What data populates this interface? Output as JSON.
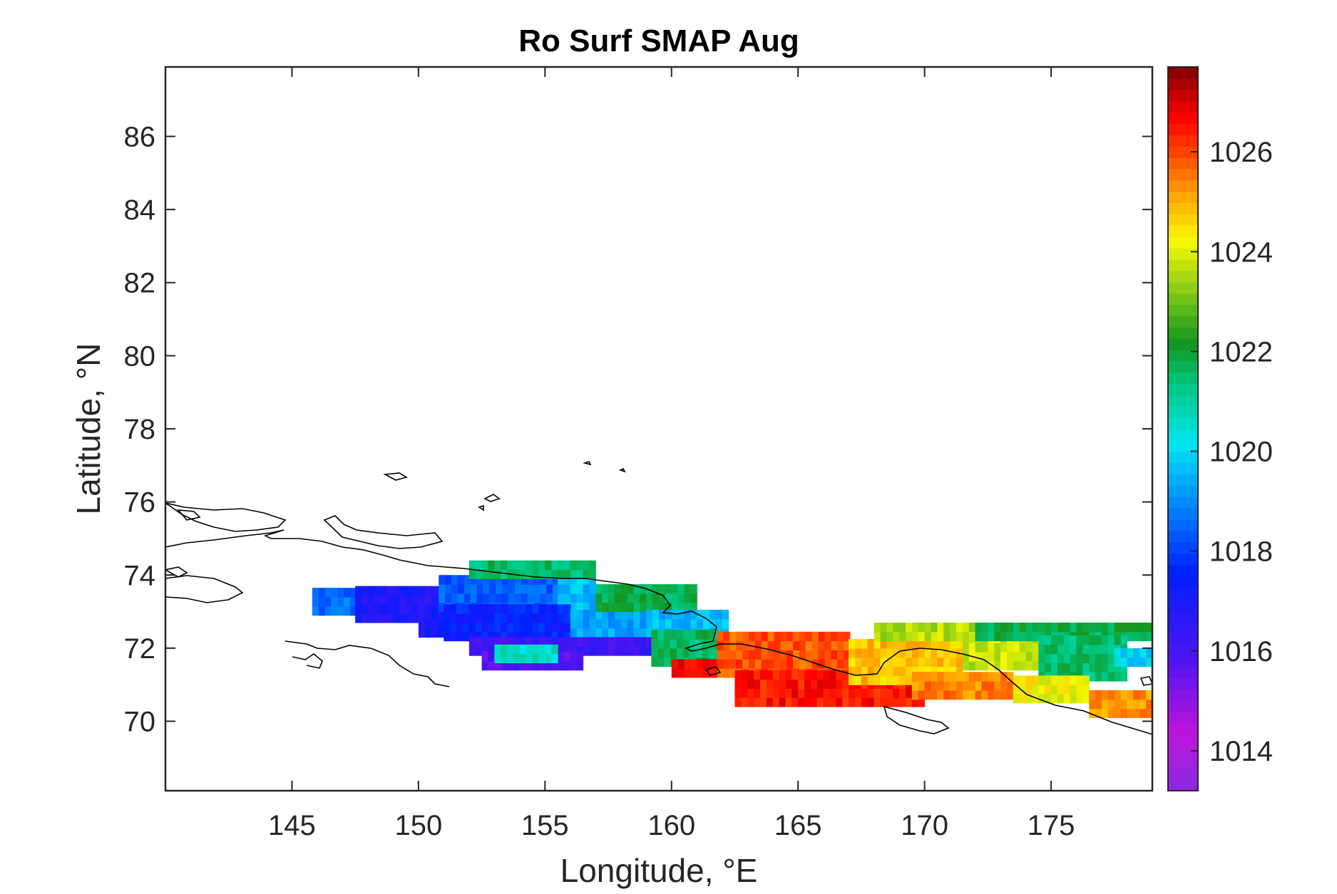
{
  "figure": {
    "title": "Ro Surf SMAP Aug"
  },
  "chart_data": {
    "type": "heatmap",
    "title": "Ro Surf SMAP Aug",
    "xlabel": "Longitude, °E",
    "ylabel": "Latitude, °N",
    "xlim": [
      140,
      179
    ],
    "ylim": [
      68.1,
      87.9
    ],
    "x_ticks": [
      145,
      150,
      155,
      160,
      165,
      170,
      175
    ],
    "y_ticks": [
      70,
      72,
      74,
      76,
      78,
      80,
      82,
      84,
      86
    ],
    "x_tick_labels": [
      "145",
      "150",
      "155",
      "160",
      "165",
      "170",
      "175"
    ],
    "y_tick_labels": [
      "70",
      "72",
      "74",
      "76",
      "78",
      "80",
      "82",
      "84",
      "86"
    ],
    "grid": false,
    "colorbar": {
      "position": "right",
      "colormap": "jet-like (purple-blue-cyan-green-yellow-red-darkred)",
      "clim": [
        1013.2,
        1027.7
      ],
      "ticks": [
        1014,
        1016,
        1018,
        1020,
        1022,
        1024,
        1026
      ],
      "tick_labels": [
        "1014",
        "1016",
        "1018",
        "1020",
        "1022",
        "1024",
        "1026"
      ]
    },
    "grid_cell_deg": {
      "lon": 0.25,
      "lat": 0.25
    },
    "regions": [
      {
        "name": "",
        "lon": [
          145.8,
          147.5
        ],
        "lat": [
          72.9,
          73.5
        ],
        "value": 1018.6
      },
      {
        "name": "",
        "lon": [
          147.5,
          151.0
        ],
        "lat": [
          72.7,
          73.5
        ],
        "value": 1016.8
      },
      {
        "name": "",
        "lon": [
          150.0,
          152.5
        ],
        "lat": [
          72.3,
          73.0
        ],
        "value": 1017.0
      },
      {
        "name": "",
        "lon": [
          150.8,
          155.5
        ],
        "lat": [
          73.0,
          73.9
        ],
        "value": 1018.4
      },
      {
        "name": "",
        "lon": [
          155.5,
          157.0
        ],
        "lat": [
          73.0,
          73.9
        ],
        "value": 1019.6
      },
      {
        "name": "",
        "lon": [
          151.0,
          156.0
        ],
        "lat": [
          72.2,
          73.0
        ],
        "value": 1017.5
      },
      {
        "name": "",
        "lon": [
          156.0,
          159.0
        ],
        "lat": [
          72.3,
          73.0
        ],
        "value": 1019.3
      },
      {
        "name": "",
        "lon": [
          157.0,
          160.8
        ],
        "lat": [
          73.0,
          73.7
        ],
        "value": 1021.8
      },
      {
        "name": "",
        "lon": [
          152.0,
          157.0
        ],
        "lat": [
          73.9,
          74.3
        ],
        "value": 1021.6
      },
      {
        "name": "",
        "lon": [
          159.0,
          162.2
        ],
        "lat": [
          72.3,
          73.0
        ],
        "value": 1019.6
      },
      {
        "name": "",
        "lon": [
          152.0,
          159.2
        ],
        "lat": [
          71.8,
          72.3
        ],
        "value": 1016.2
      },
      {
        "name": "",
        "lon": [
          152.5,
          156.5
        ],
        "lat": [
          71.4,
          71.8
        ],
        "value": 1015.8
      },
      {
        "name": "",
        "lon": [
          153.0,
          155.5
        ],
        "lat": [
          71.6,
          71.9
        ],
        "value": 1020.6
      },
      {
        "name": "",
        "lon": [
          159.2,
          161.8
        ],
        "lat": [
          71.5,
          72.3
        ],
        "value": 1021.6
      },
      {
        "name": "",
        "lon": [
          160.0,
          162.0
        ],
        "lat": [
          71.2,
          71.6
        ],
        "value": 1026.8
      },
      {
        "name": "",
        "lon": [
          161.8,
          167.0
        ],
        "lat": [
          71.2,
          72.3
        ],
        "value": 1025.9
      },
      {
        "name": "",
        "lon": [
          162.5,
          170.0
        ],
        "lat": [
          70.4,
          71.2
        ],
        "value": 1026.5
      },
      {
        "name": "",
        "lon": [
          167.0,
          171.5
        ],
        "lat": [
          71.0,
          72.2
        ],
        "value": 1024.8
      },
      {
        "name": "",
        "lon": [
          169.5,
          173.5
        ],
        "lat": [
          70.6,
          71.3
        ],
        "value": 1025.4
      },
      {
        "name": "",
        "lon": [
          168.0,
          172.0
        ],
        "lat": [
          72.2,
          72.7
        ],
        "value": 1023.6
      },
      {
        "name": "",
        "lon": [
          171.5,
          174.5
        ],
        "lat": [
          71.4,
          72.2
        ],
        "value": 1023.8
      },
      {
        "name": "",
        "lon": [
          172.0,
          179.0
        ],
        "lat": [
          72.2,
          72.7
        ],
        "value": 1021.8
      },
      {
        "name": "",
        "lon": [
          174.5,
          177.8
        ],
        "lat": [
          71.1,
          72.2
        ],
        "value": 1021.5
      },
      {
        "name": "",
        "lon": [
          173.5,
          176.5
        ],
        "lat": [
          70.5,
          71.1
        ],
        "value": 1024.2
      },
      {
        "name": "",
        "lon": [
          176.5,
          179.0
        ],
        "lat": [
          70.1,
          70.8
        ],
        "value": 1025.3
      },
      {
        "name": "",
        "lon": [
          177.5,
          179.0
        ],
        "lat": [
          71.5,
          72.0
        ],
        "value": 1020.0
      }
    ]
  }
}
